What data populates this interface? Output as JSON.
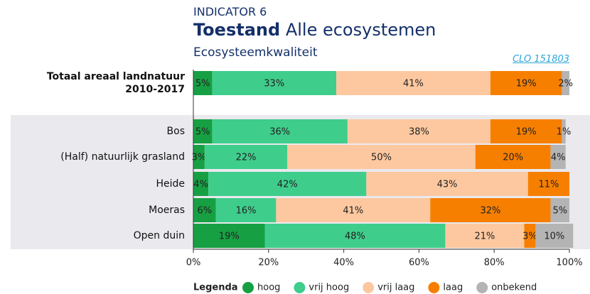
{
  "chart_data": {
    "type": "stacked_barh",
    "kicker": "INDICATOR 6",
    "title_bold": "Toestand",
    "title": "Alle ecosystemen",
    "subtitle": "Ecosysteemkwaliteit",
    "link": "CLO 151803",
    "legend_title": "Legenda",
    "categories": [
      "Totaal areaal landnatuur\n2010-2017",
      "Bos",
      "(Half) natuurlijk grasland",
      "Heide",
      "Moeras",
      "Open duin"
    ],
    "series": [
      {
        "name": "hoog",
        "color": "#17a043",
        "values": [
          5,
          5,
          3,
          4,
          6,
          19
        ],
        "value_labels": [
          "5%",
          "5%",
          "3%",
          "4%",
          "6%",
          "19%"
        ]
      },
      {
        "name": "vrij hoog",
        "color": "#3fcd8c",
        "values": [
          33,
          36,
          22,
          42,
          16,
          48
        ],
        "value_labels": [
          "33%",
          "36%",
          "22%",
          "42%",
          "16%",
          "48%"
        ]
      },
      {
        "name": "vrij laag",
        "color": "#fdc8a0",
        "values": [
          41,
          38,
          50,
          43,
          41,
          21
        ],
        "value_labels": [
          "41%",
          "38%",
          "50%",
          "43%",
          "41%",
          "21%"
        ]
      },
      {
        "name": "laag",
        "color": "#f77f00",
        "values": [
          19,
          19,
          20,
          11,
          32,
          3
        ],
        "value_labels": [
          "19%",
          "19%",
          "20%",
          "11%",
          "32%",
          "3%"
        ]
      },
      {
        "name": "onbekend",
        "color": "#b4b4b4",
        "values": [
          2,
          1,
          4,
          0,
          5,
          10
        ],
        "value_labels": [
          "2%",
          "1%",
          "4%",
          null,
          "5%",
          "10%"
        ]
      }
    ],
    "xlim": [
      0,
      100
    ],
    "xticks": [
      {
        "value": 0,
        "label": "0%"
      },
      {
        "value": 20,
        "label": "20%"
      },
      {
        "value": 40,
        "label": "40%"
      },
      {
        "value": 60,
        "label": "60%"
      },
      {
        "value": 80,
        "label": "80%"
      },
      {
        "value": 100,
        "label": "100%"
      }
    ]
  }
}
